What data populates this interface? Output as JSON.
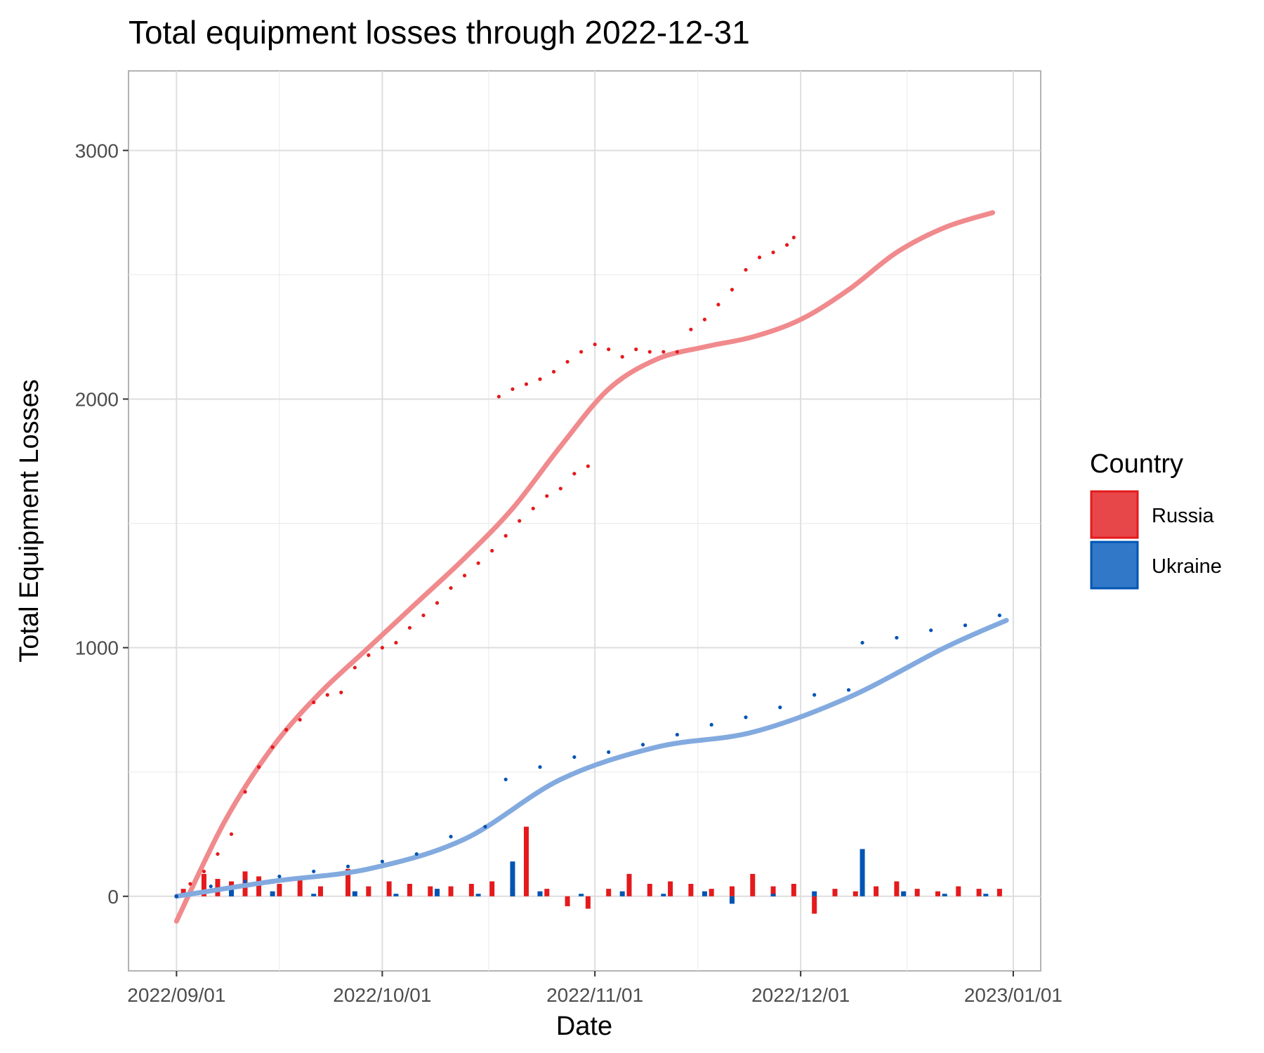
{
  "chart_data": {
    "type": "line",
    "title": "Total equipment losses through 2022-12-31",
    "xlabel": "Date",
    "ylabel": "Total Equipment Losses",
    "x_ticks": [
      "2022/09/01",
      "2022/10/01",
      "2022/11/01",
      "2022/12/01",
      "2023/01/01"
    ],
    "y_ticks": [
      0,
      1000,
      2000,
      3000
    ],
    "xlim": [
      "2022-08-25",
      "2023-01-05"
    ],
    "ylim": [
      -300,
      3320
    ],
    "grid": true,
    "legend": {
      "title": "Country",
      "placement": "right"
    },
    "marks": "dots = cumulative losses, thick line = smoothed trend, bars = daily change",
    "series": [
      {
        "name": "Russia",
        "color": "#e41a1c",
        "fill_color": "#e8474a",
        "trend_color": "#f08a8d",
        "cumulative": [
          [
            "2022-09-01",
            0
          ],
          [
            "2022-09-03",
            50
          ],
          [
            "2022-09-05",
            100
          ],
          [
            "2022-09-07",
            170
          ],
          [
            "2022-09-09",
            250
          ],
          [
            "2022-09-11",
            420
          ],
          [
            "2022-09-13",
            520
          ],
          [
            "2022-09-15",
            600
          ],
          [
            "2022-09-17",
            670
          ],
          [
            "2022-09-19",
            710
          ],
          [
            "2022-09-21",
            780
          ],
          [
            "2022-09-23",
            810
          ],
          [
            "2022-09-25",
            820
          ],
          [
            "2022-09-27",
            920
          ],
          [
            "2022-09-29",
            970
          ],
          [
            "2022-10-01",
            1000
          ],
          [
            "2022-10-03",
            1020
          ],
          [
            "2022-10-05",
            1080
          ],
          [
            "2022-10-07",
            1130
          ],
          [
            "2022-10-09",
            1180
          ],
          [
            "2022-10-11",
            1240
          ],
          [
            "2022-10-13",
            1290
          ],
          [
            "2022-10-15",
            1340
          ],
          [
            "2022-10-17",
            1390
          ],
          [
            "2022-10-19",
            1450
          ],
          [
            "2022-10-21",
            1510
          ],
          [
            "2022-10-23",
            1560
          ],
          [
            "2022-10-25",
            1610
          ],
          [
            "2022-10-27",
            1640
          ],
          [
            "2022-10-29",
            1700
          ],
          [
            "2022-10-31",
            1730
          ],
          [
            "2022-10-18",
            2010
          ],
          [
            "2022-10-20",
            2040
          ],
          [
            "2022-10-22",
            2060
          ],
          [
            "2022-10-24",
            2080
          ],
          [
            "2022-10-26",
            2110
          ],
          [
            "2022-10-28",
            2150
          ],
          [
            "2022-10-30",
            2190
          ],
          [
            "2022-11-01",
            2220
          ],
          [
            "2022-11-03",
            2200
          ],
          [
            "2022-11-05",
            2170
          ],
          [
            "2022-11-07",
            2200
          ],
          [
            "2022-11-09",
            2190
          ],
          [
            "2022-11-11",
            2190
          ],
          [
            "2022-11-13",
            2190
          ],
          [
            "2022-11-15",
            2280
          ],
          [
            "2022-11-17",
            2320
          ],
          [
            "2022-11-19",
            2380
          ],
          [
            "2022-11-21",
            2440
          ],
          [
            "2022-11-23",
            2520
          ],
          [
            "2022-11-25",
            2570
          ],
          [
            "2022-11-27",
            2590
          ],
          [
            "2022-11-29",
            2620
          ],
          [
            "2022-11-30",
            2650
          ]
        ],
        "trend": [
          [
            "2022-09-01",
            -100
          ],
          [
            "2022-09-08",
            300
          ],
          [
            "2022-09-15",
            600
          ],
          [
            "2022-09-22",
            820
          ],
          [
            "2022-09-29",
            1000
          ],
          [
            "2022-10-06",
            1180
          ],
          [
            "2022-10-13",
            1360
          ],
          [
            "2022-10-20",
            1560
          ],
          [
            "2022-10-27",
            1810
          ],
          [
            "2022-11-03",
            2040
          ],
          [
            "2022-11-10",
            2160
          ],
          [
            "2022-11-17",
            2210
          ],
          [
            "2022-11-24",
            2250
          ],
          [
            "2022-12-01",
            2320
          ],
          [
            "2022-12-08",
            2440
          ],
          [
            "2022-12-15",
            2590
          ],
          [
            "2022-12-22",
            2690
          ],
          [
            "2022-12-29",
            2750
          ]
        ],
        "daily": [
          [
            "2022-09-02",
            30
          ],
          [
            "2022-09-05",
            90
          ],
          [
            "2022-09-07",
            70
          ],
          [
            "2022-09-09",
            60
          ],
          [
            "2022-09-11",
            100
          ],
          [
            "2022-09-13",
            80
          ],
          [
            "2022-09-16",
            50
          ],
          [
            "2022-09-19",
            70
          ],
          [
            "2022-09-22",
            40
          ],
          [
            "2022-09-26",
            110
          ],
          [
            "2022-09-29",
            40
          ],
          [
            "2022-10-02",
            60
          ],
          [
            "2022-10-05",
            50
          ],
          [
            "2022-10-08",
            40
          ],
          [
            "2022-10-11",
            40
          ],
          [
            "2022-10-14",
            50
          ],
          [
            "2022-10-17",
            60
          ],
          [
            "2022-10-20",
            40
          ],
          [
            "2022-10-22",
            280
          ],
          [
            "2022-10-25",
            30
          ],
          [
            "2022-10-28",
            -40
          ],
          [
            "2022-10-31",
            -50
          ],
          [
            "2022-11-03",
            30
          ],
          [
            "2022-11-06",
            90
          ],
          [
            "2022-11-09",
            50
          ],
          [
            "2022-11-12",
            60
          ],
          [
            "2022-11-15",
            50
          ],
          [
            "2022-11-18",
            30
          ],
          [
            "2022-11-21",
            40
          ],
          [
            "2022-11-24",
            90
          ],
          [
            "2022-11-27",
            40
          ],
          [
            "2022-11-30",
            50
          ],
          [
            "2022-12-03",
            -70
          ],
          [
            "2022-12-06",
            30
          ],
          [
            "2022-12-09",
            20
          ],
          [
            "2022-12-12",
            40
          ],
          [
            "2022-12-15",
            60
          ],
          [
            "2022-12-18",
            30
          ],
          [
            "2022-12-21",
            20
          ],
          [
            "2022-12-24",
            40
          ],
          [
            "2022-12-27",
            30
          ],
          [
            "2022-12-30",
            30
          ]
        ]
      },
      {
        "name": "Ukraine",
        "color": "#0054b4",
        "fill_color": "#3278c8",
        "trend_color": "#82aadf",
        "cumulative": [
          [
            "2022-09-01",
            0
          ],
          [
            "2022-09-06",
            40
          ],
          [
            "2022-09-11",
            60
          ],
          [
            "2022-09-16",
            80
          ],
          [
            "2022-09-21",
            100
          ],
          [
            "2022-09-26",
            120
          ],
          [
            "2022-10-01",
            140
          ],
          [
            "2022-10-06",
            170
          ],
          [
            "2022-10-11",
            240
          ],
          [
            "2022-10-16",
            280
          ],
          [
            "2022-10-19",
            470
          ],
          [
            "2022-10-24",
            520
          ],
          [
            "2022-10-29",
            560
          ],
          [
            "2022-11-03",
            580
          ],
          [
            "2022-11-08",
            610
          ],
          [
            "2022-11-13",
            650
          ],
          [
            "2022-11-18",
            690
          ],
          [
            "2022-11-23",
            720
          ],
          [
            "2022-11-28",
            760
          ],
          [
            "2022-12-03",
            810
          ],
          [
            "2022-12-08",
            830
          ],
          [
            "2022-12-10",
            1020
          ],
          [
            "2022-12-15",
            1040
          ],
          [
            "2022-12-20",
            1070
          ],
          [
            "2022-12-25",
            1090
          ],
          [
            "2022-12-30",
            1130
          ]
        ],
        "trend": [
          [
            "2022-09-01",
            0
          ],
          [
            "2022-09-15",
            60
          ],
          [
            "2022-09-29",
            110
          ],
          [
            "2022-10-13",
            230
          ],
          [
            "2022-10-27",
            470
          ],
          [
            "2022-11-10",
            600
          ],
          [
            "2022-11-24",
            660
          ],
          [
            "2022-12-08",
            800
          ],
          [
            "2022-12-22",
            1000
          ],
          [
            "2022-12-31",
            1110
          ]
        ],
        "daily": [
          [
            "2022-09-03",
            20
          ],
          [
            "2022-09-09",
            30
          ],
          [
            "2022-09-15",
            20
          ],
          [
            "2022-09-21",
            10
          ],
          [
            "2022-09-27",
            20
          ],
          [
            "2022-10-03",
            10
          ],
          [
            "2022-10-09",
            30
          ],
          [
            "2022-10-15",
            10
          ],
          [
            "2022-10-20",
            140
          ],
          [
            "2022-10-24",
            20
          ],
          [
            "2022-10-30",
            10
          ],
          [
            "2022-11-05",
            20
          ],
          [
            "2022-11-11",
            10
          ],
          [
            "2022-11-17",
            20
          ],
          [
            "2022-11-21",
            -30
          ],
          [
            "2022-11-27",
            10
          ],
          [
            "2022-12-03",
            20
          ],
          [
            "2022-12-10",
            190
          ],
          [
            "2022-12-16",
            20
          ],
          [
            "2022-12-22",
            10
          ],
          [
            "2022-12-28",
            10
          ]
        ]
      }
    ]
  }
}
